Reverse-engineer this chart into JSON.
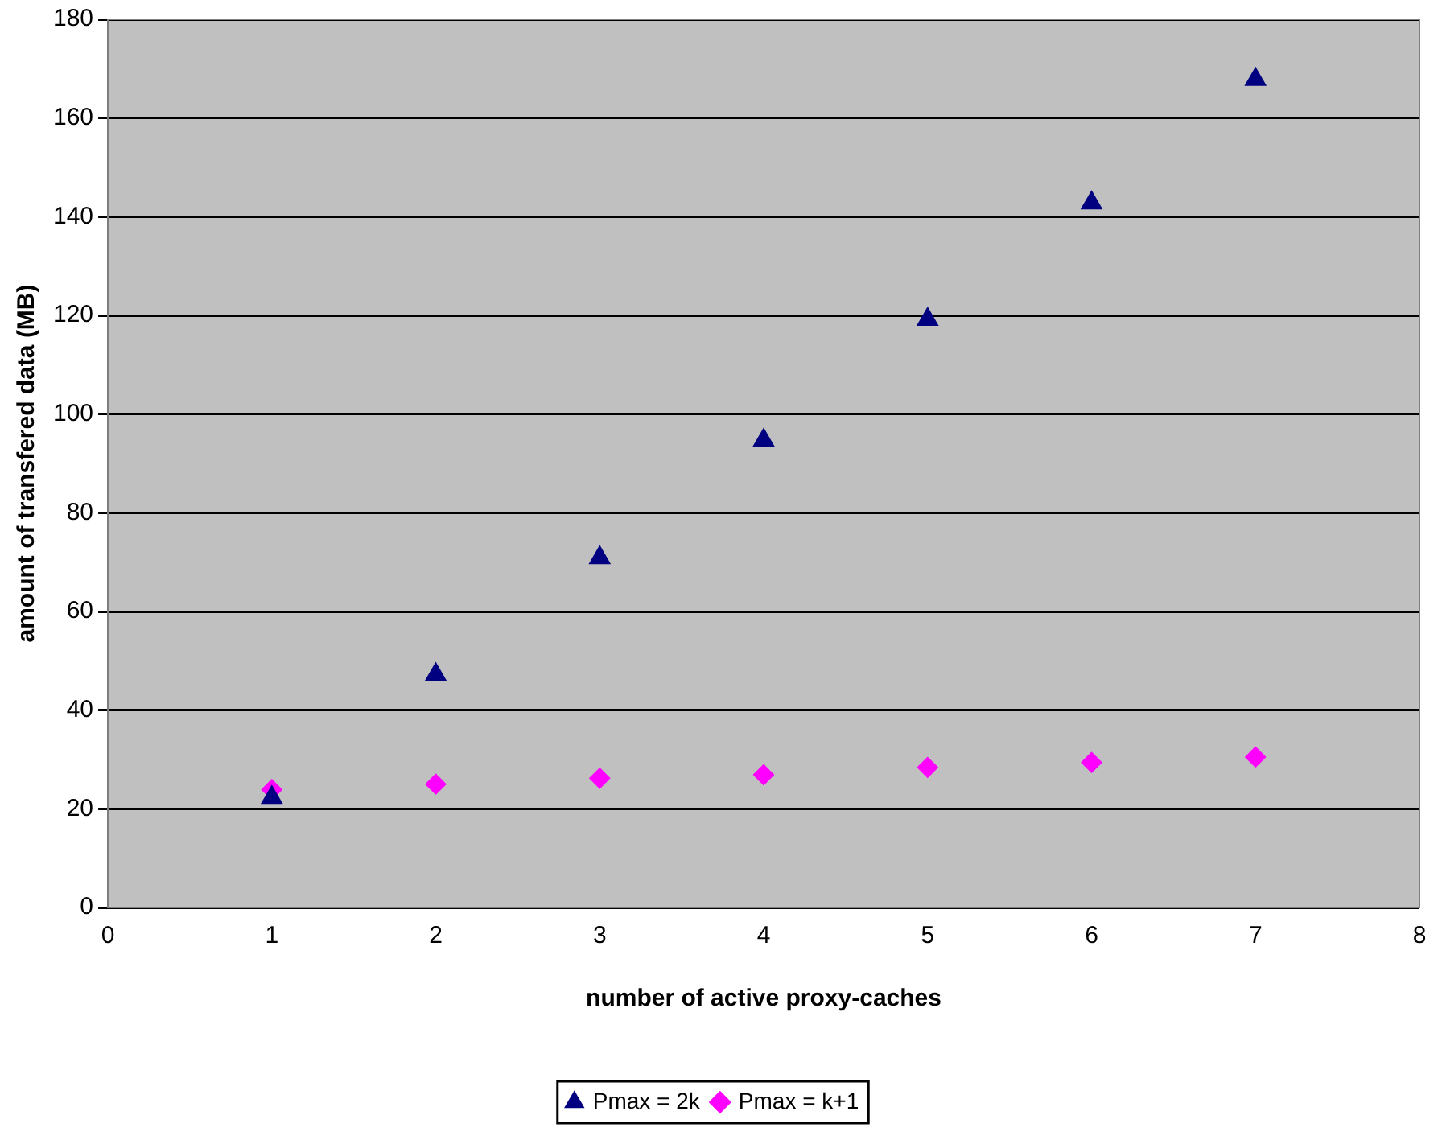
{
  "chart_data": {
    "type": "scatter",
    "xlabel": "number of active proxy-caches",
    "ylabel": "amount of transfered data (MB)",
    "x": [
      1,
      2,
      3,
      4,
      5,
      6,
      7
    ],
    "series": [
      {
        "name": "Pmax = 2k",
        "color": "#000080",
        "marker": "triangle",
        "values": [
          22.3,
          47.2,
          70.9,
          94.7,
          119.2,
          142.8,
          167.8
        ]
      },
      {
        "name": "Pmax = k+1",
        "color": "#ff00ff",
        "marker": "diamond",
        "values": [
          23.9,
          25.0,
          26.2,
          26.9,
          28.4,
          29.4,
          30.5
        ]
      }
    ],
    "xlim": [
      0,
      8
    ],
    "xticks": [
      0,
      1,
      2,
      3,
      4,
      5,
      6,
      7,
      8
    ],
    "ylim": [
      0,
      180
    ],
    "yticks": [
      0,
      20,
      40,
      60,
      80,
      100,
      120,
      140,
      160,
      180
    ],
    "grid": "y",
    "legend": "bottom"
  }
}
